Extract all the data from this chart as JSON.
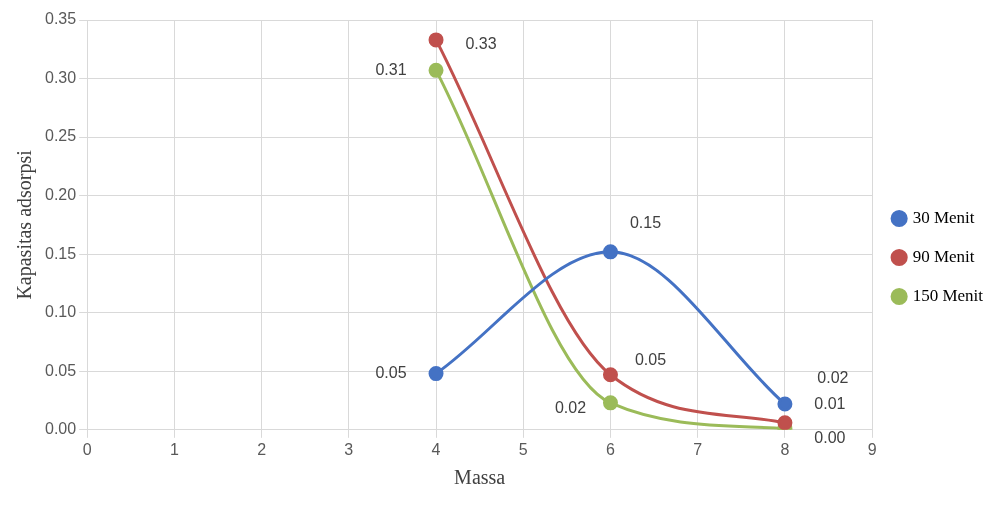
{
  "chart_data": {
    "type": "line",
    "xlabel": "Massa",
    "ylabel": "Kapasitas adsorpsi",
    "x": [
      4,
      6,
      8
    ],
    "xlim": [
      0,
      9
    ],
    "xticks": [
      0,
      1,
      2,
      3,
      4,
      5,
      6,
      7,
      8,
      9
    ],
    "ylim": [
      0,
      0.35
    ],
    "yticks": [
      {
        "value": 0,
        "label": "0.00"
      },
      {
        "value": 0.05,
        "label": "0.05"
      },
      {
        "value": 0.1,
        "label": "0.10"
      },
      {
        "value": 0.15,
        "label": "0.15"
      },
      {
        "value": 0.2,
        "label": "0.20"
      },
      {
        "value": 0.25,
        "label": "0.25"
      },
      {
        "value": 0.3,
        "label": "0.30"
      },
      {
        "value": 0.35,
        "label": "0.35"
      }
    ],
    "grid": true,
    "legend": "right",
    "marker": "circle",
    "line_style": "solid",
    "series": [
      {
        "name": "30 Menit",
        "color": "#4472c4",
        "values": [
          0.048,
          0.152,
          0.022
        ],
        "value_labels": [
          "0.05",
          "0.15",
          "0.02"
        ]
      },
      {
        "name": "90 Menit",
        "color": "#c0504d",
        "values": [
          0.333,
          0.047,
          0.006
        ],
        "value_labels": [
          "0.33",
          "0.05",
          "0.01"
        ]
      },
      {
        "name": "150 Menit",
        "color": "#9bbb59",
        "values": [
          0.307,
          0.023,
          0.001
        ],
        "value_labels": [
          "0.31",
          "0.02",
          "0.00"
        ]
      }
    ]
  }
}
